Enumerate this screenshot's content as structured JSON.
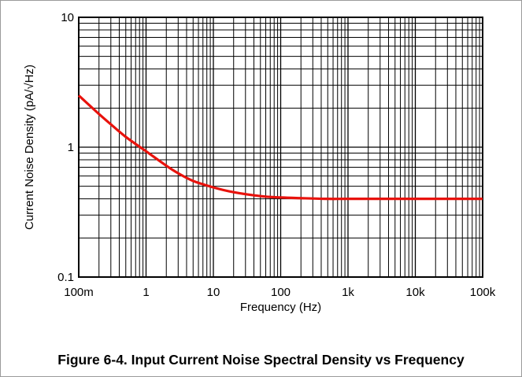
{
  "caption": "Figure 6-4. Input Current Noise Spectral Density vs Frequency",
  "chart_data": {
    "type": "line",
    "title": "",
    "xlabel": "Frequency (Hz)",
    "ylabel": "Current Noise Density (pA/√Hz)",
    "x_scale": "log",
    "y_scale": "log",
    "xlim": [
      0.1,
      100000
    ],
    "ylim": [
      0.1,
      10
    ],
    "grid": true,
    "x_ticks": [
      {
        "value": 0.1,
        "label": "100m"
      },
      {
        "value": 1,
        "label": "1"
      },
      {
        "value": 10,
        "label": "10"
      },
      {
        "value": 100,
        "label": "100"
      },
      {
        "value": 1000,
        "label": "1k"
      },
      {
        "value": 10000,
        "label": "10k"
      },
      {
        "value": 100000,
        "label": "100k"
      }
    ],
    "y_ticks": [
      {
        "value": 0.1,
        "label": "0.1"
      },
      {
        "value": 1,
        "label": "1"
      },
      {
        "value": 10,
        "label": "10"
      }
    ],
    "series": [
      {
        "color": "#e8120c",
        "x": [
          0.1,
          0.2,
          0.3,
          0.5,
          1,
          2,
          3,
          5,
          10,
          20,
          50,
          100,
          200,
          500,
          1000,
          10000,
          100000
        ],
        "y": [
          2.5,
          1.8,
          1.5,
          1.2,
          0.93,
          0.72,
          0.63,
          0.55,
          0.49,
          0.45,
          0.42,
          0.41,
          0.405,
          0.4,
          0.4,
          0.4,
          0.4
        ]
      }
    ]
  }
}
